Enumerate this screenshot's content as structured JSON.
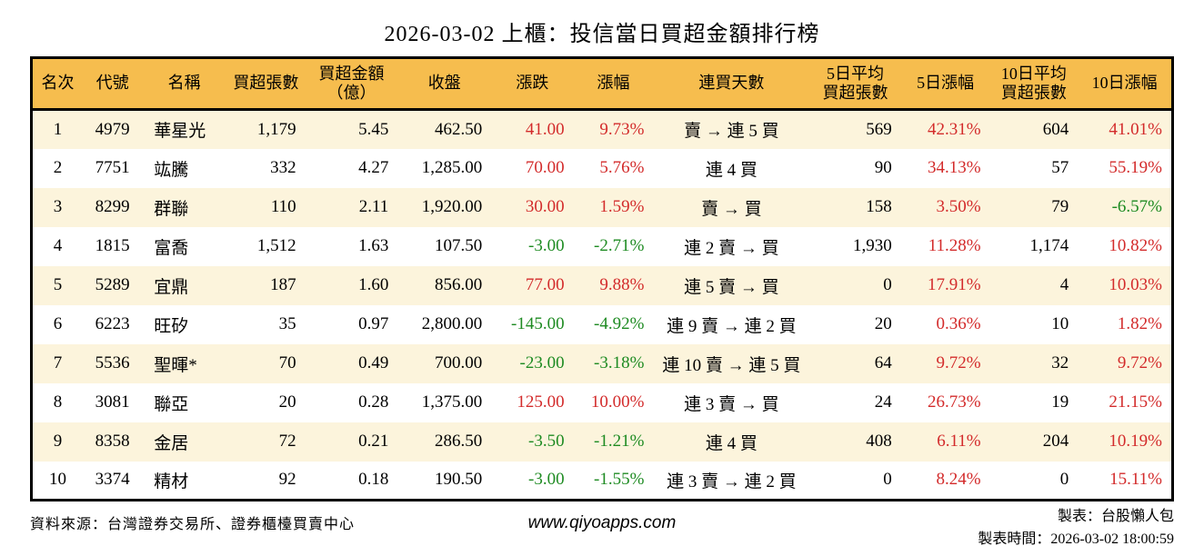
{
  "chart_data": {
    "type": "table",
    "title": "2026-03-02 上櫃：投信當日買超金額排行榜",
    "columns": [
      "名次",
      "代號",
      "名稱",
      "買超張數",
      "買超金額\n（億）",
      "收盤",
      "漲跌",
      "漲幅",
      "連買天數",
      "5日平均\n買超張數",
      "5日漲幅",
      "10日平均\n買超張數",
      "10日漲幅"
    ],
    "rows": [
      [
        "1",
        "4979",
        "華星光",
        "1,179",
        "5.45",
        "462.50",
        "41.00",
        "9.73%",
        "賣 → 連 5 買",
        "569",
        "42.31%",
        "604",
        "41.01%"
      ],
      [
        "2",
        "7751",
        "竑騰",
        "332",
        "4.27",
        "1,285.00",
        "70.00",
        "5.76%",
        "連 4 買",
        "90",
        "34.13%",
        "57",
        "55.19%"
      ],
      [
        "3",
        "8299",
        "群聯",
        "110",
        "2.11",
        "1,920.00",
        "30.00",
        "1.59%",
        "賣 → 買",
        "158",
        "3.50%",
        "79",
        "-6.57%"
      ],
      [
        "4",
        "1815",
        "富喬",
        "1,512",
        "1.63",
        "107.50",
        "-3.00",
        "-2.71%",
        "連 2 賣 → 買",
        "1,930",
        "11.28%",
        "1,174",
        "10.82%"
      ],
      [
        "5",
        "5289",
        "宜鼎",
        "187",
        "1.60",
        "856.00",
        "77.00",
        "9.88%",
        "連 5 賣 → 買",
        "0",
        "17.91%",
        "4",
        "10.03%"
      ],
      [
        "6",
        "6223",
        "旺矽",
        "35",
        "0.97",
        "2,800.00",
        "-145.00",
        "-4.92%",
        "連 9 賣 → 連 2 買",
        "20",
        "0.36%",
        "10",
        "1.82%"
      ],
      [
        "7",
        "5536",
        "聖暉*",
        "70",
        "0.49",
        "700.00",
        "-23.00",
        "-3.18%",
        "連 10 賣 → 連 5 買",
        "64",
        "9.72%",
        "32",
        "9.72%"
      ],
      [
        "8",
        "3081",
        "聯亞",
        "20",
        "0.28",
        "1,375.00",
        "125.00",
        "10.00%",
        "連 3 賣 → 買",
        "24",
        "26.73%",
        "19",
        "21.15%"
      ],
      [
        "9",
        "8358",
        "金居",
        "72",
        "0.21",
        "286.50",
        "-3.50",
        "-1.21%",
        "連 4 買",
        "408",
        "6.11%",
        "204",
        "10.19%"
      ],
      [
        "10",
        "3374",
        "精材",
        "92",
        "0.18",
        "190.50",
        "-3.00",
        "-1.55%",
        "連 3 賣 → 連 2 買",
        "0",
        "8.24%",
        "0",
        "15.11%"
      ]
    ],
    "layout": {
      "striped": true,
      "grid": false,
      "positive_color_meaning": "up (red, Taiwan convention)",
      "negative_color_meaning": "down (green)"
    }
  },
  "footer": {
    "source": "資料來源：台灣證券交易所、證券櫃檯買賣中心",
    "website": "www.qiyoapps.com",
    "author": "製表：台股懶人包",
    "timestamp": "製表時間：2026-03-02 18:00:59"
  },
  "colors": {
    "header_bg": "#F6BD4E",
    "stripe_bg": "#FCF4DC",
    "up_red": "#D32B2B",
    "down_green": "#1E8B22",
    "border": "#000000"
  }
}
